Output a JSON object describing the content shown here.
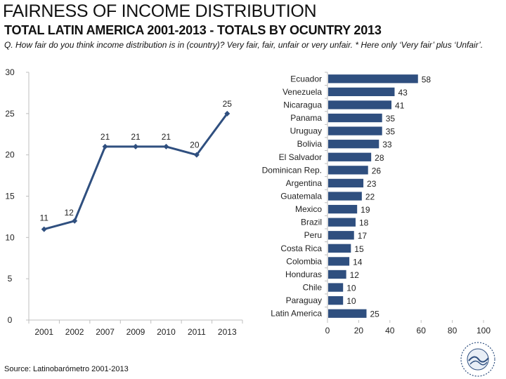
{
  "header": {
    "title": "FAIRNESS OF INCOME DISTRIBUTION",
    "subtitle": "TOTAL LATIN AMERICA 2001-2013 - TOTALS BY OCUNTRY 2013",
    "question": "Q. How fair do you think income distribution is in (country)? Very fair, fair, unfair or very unfair. * Here only ‘Very fair’ plus ‘Unfair’."
  },
  "source": "Source: Latinobarómetro 2001-2013",
  "colors": {
    "accent": "#2f4f7f",
    "axis": "#bfbfbf",
    "text": "#222222"
  },
  "chart_data": [
    {
      "type": "line",
      "title": "Total Latin America",
      "categories": [
        "2001",
        "2002",
        "2007",
        "2009",
        "2010",
        "2011",
        "2013"
      ],
      "values": [
        11,
        12,
        21,
        21,
        21,
        20,
        25
      ],
      "yticks": [
        "0",
        "5",
        "10",
        "15",
        "20",
        "25",
        "30"
      ],
      "ylim": [
        0,
        30
      ],
      "xlabel": "",
      "ylabel": ""
    },
    {
      "type": "bar",
      "orientation": "horizontal",
      "title": "Totals by country 2013",
      "categories": [
        "Ecuador",
        "Venezuela",
        "Nicaragua",
        "Panama",
        "Uruguay",
        "Bolivia",
        "El Salvador",
        "Dominican Rep.",
        "Argentina",
        "Guatemala",
        "Mexico",
        "Brazil",
        "Peru",
        "Costa Rica",
        "Colombia",
        "Honduras",
        "Chile",
        "Paraguay",
        "Latin America"
      ],
      "values": [
        58,
        43,
        41,
        35,
        35,
        33,
        28,
        26,
        23,
        22,
        19,
        18,
        17,
        15,
        14,
        12,
        10,
        10,
        25
      ],
      "xticks": [
        "0",
        "20",
        "40",
        "60",
        "80",
        "100"
      ],
      "xlim": [
        0,
        100
      ]
    }
  ]
}
